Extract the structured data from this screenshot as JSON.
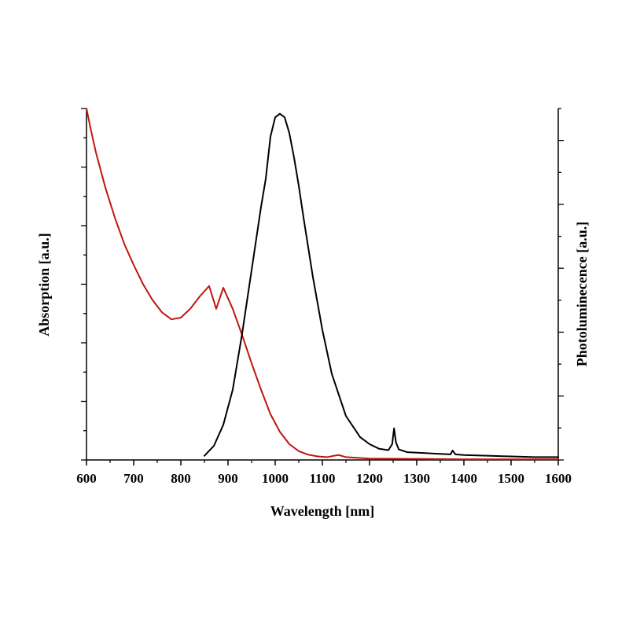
{
  "chart_data": {
    "type": "line",
    "xlabel": "Wavelength [nm]",
    "ylabel_left": "Absorption [a.u.]",
    "ylabel_right": "Photoluminecence [a.u.]",
    "xlim": [
      600,
      1600
    ],
    "x_ticks": [
      "600",
      "700",
      "800",
      "900",
      "1000",
      "1100",
      "1200",
      "1300",
      "1400",
      "1500",
      "1600"
    ],
    "ylim_left": [
      0,
      1
    ],
    "ylim_right": [
      0,
      1
    ],
    "y_tick_labels_shown": false,
    "grid": false,
    "series": [
      {
        "axis": "left",
        "color": "#c0150f",
        "x": [
          600,
          610,
          620,
          640,
          660,
          680,
          700,
          720,
          740,
          760,
          780,
          800,
          820,
          840,
          860,
          875,
          890,
          910,
          930,
          950,
          970,
          990,
          1010,
          1030,
          1050,
          1070,
          1090,
          1110,
          1125,
          1135,
          1150,
          1200,
          1300,
          1400,
          1500,
          1600
        ],
        "values": [
          1.0,
          0.935,
          0.875,
          0.775,
          0.69,
          0.615,
          0.555,
          0.5,
          0.455,
          0.42,
          0.4,
          0.405,
          0.43,
          0.465,
          0.495,
          0.43,
          0.49,
          0.43,
          0.355,
          0.275,
          0.2,
          0.13,
          0.08,
          0.045,
          0.025,
          0.015,
          0.01,
          0.008,
          0.012,
          0.014,
          0.008,
          0.004,
          0.003,
          0.002,
          0.002,
          0.002
        ]
      },
      {
        "axis": "right",
        "color": "#000000",
        "x": [
          850,
          870,
          890,
          910,
          930,
          950,
          970,
          980,
          990,
          1000,
          1010,
          1020,
          1030,
          1040,
          1050,
          1060,
          1080,
          1100,
          1120,
          1150,
          1180,
          1200,
          1220,
          1240,
          1248,
          1252,
          1256,
          1262,
          1280,
          1310,
          1340,
          1372,
          1376,
          1382,
          1400,
          1450,
          1500,
          1550,
          1600
        ],
        "values": [
          0.012,
          0.04,
          0.1,
          0.2,
          0.36,
          0.54,
          0.72,
          0.8,
          0.92,
          0.975,
          0.985,
          0.975,
          0.93,
          0.86,
          0.78,
          0.69,
          0.52,
          0.37,
          0.245,
          0.125,
          0.065,
          0.045,
          0.032,
          0.028,
          0.045,
          0.09,
          0.05,
          0.03,
          0.022,
          0.02,
          0.018,
          0.016,
          0.027,
          0.016,
          0.014,
          0.012,
          0.01,
          0.008,
          0.008
        ]
      }
    ]
  }
}
